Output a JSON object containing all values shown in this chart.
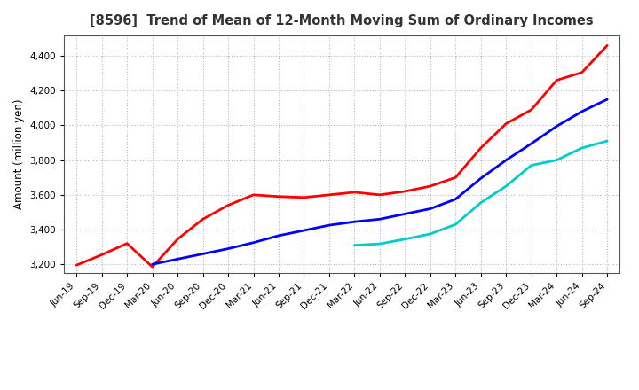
{
  "title": "[8596]  Trend of Mean of 12-Month Moving Sum of Ordinary Incomes",
  "ylabel": "Amount (million yen)",
  "background_color": "#ffffff",
  "grid_color": "#bbbbbb",
  "ylim": [
    3150,
    4520
  ],
  "yticks": [
    3200,
    3400,
    3600,
    3800,
    4000,
    4200,
    4400
  ],
  "x_labels": [
    "Jun-19",
    "Sep-19",
    "Dec-19",
    "Mar-20",
    "Jun-20",
    "Sep-20",
    "Dec-20",
    "Mar-21",
    "Jun-21",
    "Sep-21",
    "Dec-21",
    "Mar-22",
    "Jun-22",
    "Sep-22",
    "Dec-22",
    "Mar-23",
    "Jun-23",
    "Sep-23",
    "Dec-23",
    "Mar-24",
    "Jun-24",
    "Sep-24"
  ],
  "series": {
    "3 Years": {
      "color": "#ff0000",
      "data": {
        "Jun-19": 3195,
        "Sep-19": 3255,
        "Dec-19": 3320,
        "Mar-20": 3185,
        "Jun-20": 3345,
        "Sep-20": 3460,
        "Dec-20": 3540,
        "Mar-21": 3600,
        "Jun-21": 3590,
        "Sep-21": 3585,
        "Dec-21": 3600,
        "Mar-22": 3615,
        "Jun-22": 3600,
        "Sep-22": 3620,
        "Dec-22": 3650,
        "Mar-23": 3700,
        "Jun-23": 3870,
        "Sep-23": 4010,
        "Dec-23": 4090,
        "Mar-24": 4260,
        "Jun-24": 4305,
        "Sep-24": 4460
      }
    },
    "5 Years": {
      "color": "#0000ff",
      "data": {
        "Mar-20": 3200,
        "Jun-20": 3230,
        "Sep-20": 3260,
        "Dec-20": 3290,
        "Mar-21": 3325,
        "Jun-21": 3365,
        "Sep-21": 3395,
        "Dec-21": 3425,
        "Mar-22": 3445,
        "Jun-22": 3460,
        "Sep-22": 3490,
        "Dec-22": 3520,
        "Mar-23": 3575,
        "Jun-23": 3695,
        "Sep-23": 3800,
        "Dec-23": 3895,
        "Mar-24": 3995,
        "Jun-24": 4080,
        "Sep-24": 4150
      }
    },
    "7 Years": {
      "color": "#00cccc",
      "data": {
        "Mar-22": 3310,
        "Jun-22": 3318,
        "Sep-22": 3345,
        "Dec-22": 3375,
        "Mar-23": 3430,
        "Jun-23": 3555,
        "Sep-23": 3650,
        "Dec-23": 3770,
        "Mar-24": 3800,
        "Jun-24": 3870,
        "Sep-24": 3910
      }
    },
    "10 Years": {
      "color": "#00aa00",
      "data": {}
    }
  },
  "legend_ncol": 4,
  "title_fontsize": 10.5,
  "axis_fontsize": 8.5,
  "tick_fontsize": 7.5,
  "legend_fontsize": 9
}
